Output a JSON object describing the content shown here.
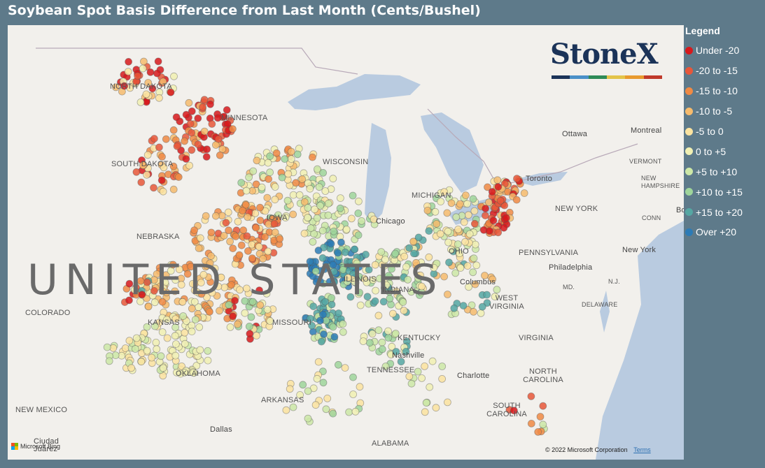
{
  "title": "Soybean Spot Basis Difference from Last Month (Cents/Bushel)",
  "legend": {
    "title": "Legend",
    "items": [
      {
        "label": "Under -20",
        "color": "#d7191c"
      },
      {
        "label": "-20 to -15",
        "color": "#e8573a"
      },
      {
        "label": "-15 to -10",
        "color": "#f08a44"
      },
      {
        "label": "-10 to -5",
        "color": "#f6bb6d"
      },
      {
        "label": "-5 to 0",
        "color": "#fbe3a0"
      },
      {
        "label": "0 to +5",
        "color": "#f1f0b3"
      },
      {
        "label": "+5 to +10",
        "color": "#cde8a7"
      },
      {
        "label": "+10 to +15",
        "color": "#9fd59b"
      },
      {
        "label": "+15 to +20",
        "color": "#55a7a3"
      },
      {
        "label": "Over +20",
        "color": "#2c7bb6"
      }
    ]
  },
  "map": {
    "country_label": "UNITED STATES",
    "state_labels": [
      "NORTH DAKOTA",
      "MINNESOTA",
      "SOUTH DAKOTA",
      "WISCONSIN",
      "MICHIGAN",
      "NEBRASKA",
      "IOWA",
      "ILLINOIS",
      "INDIANA",
      "OHIO",
      "PENNSYLVANIA",
      "NEW YORK",
      "VERMONT",
      "NEW HAMPSHIRE",
      "CONN",
      "N.J.",
      "MD.",
      "DELAWARE",
      "WEST VIRGINIA",
      "VIRGINIA",
      "KENTUCKY",
      "TENNESSEE",
      "NORTH CAROLINA",
      "SOUTH CAROLINA",
      "MISSOURI",
      "COLORADO",
      "KANSAS",
      "OKLAHOMA",
      "ARKANSAS",
      "NEW MEXICO",
      "ALABAMA"
    ],
    "city_labels": [
      "Ottawa",
      "Montreal",
      "Toronto",
      "Chicago",
      "Columbus",
      "Philadelphia",
      "New York",
      "Nashville",
      "Charlotte",
      "Dallas",
      "Ciudad Juárez",
      "Bo"
    ],
    "attribution": "Microsoft Bing",
    "copyright": "© 2022 Microsoft Corporation",
    "terms": "Terms"
  },
  "logo": {
    "text": "StoneX",
    "tm": "™",
    "bar_colors": [
      "#1b3358",
      "#4a90c8",
      "#2e8b57",
      "#e3c449",
      "#e89a2e",
      "#c0392b"
    ]
  }
}
